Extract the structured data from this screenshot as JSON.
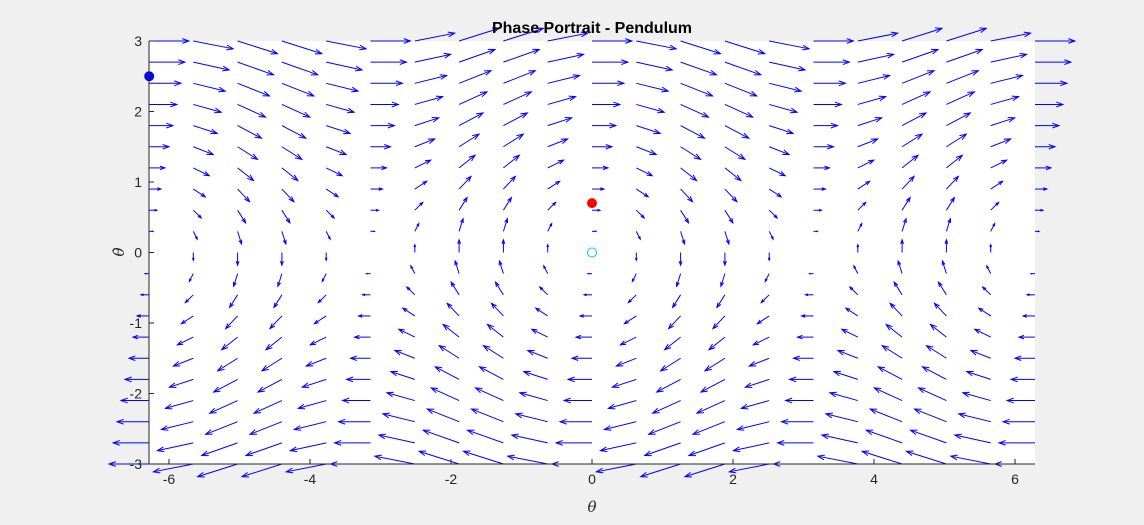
{
  "chart_data": {
    "type": "quiver",
    "title": "Phase Portrait - Pendulum",
    "xlabel": "θ",
    "ylabel": "θ̇",
    "xlim": [
      -6.283,
      6.283
    ],
    "ylim": [
      -3,
      3
    ],
    "xticks": [
      -6,
      -4,
      -2,
      0,
      2,
      4,
      6
    ],
    "xtick_labels": [
      "-6",
      "-4",
      "-2",
      "0",
      "2",
      "4",
      "6"
    ],
    "yticks": [
      -3,
      -2,
      -1,
      0,
      1,
      2,
      3
    ],
    "ytick_labels": [
      "-3",
      "-2",
      "-1",
      "0",
      "1",
      "2",
      "3"
    ],
    "grid": false,
    "vector_field": {
      "equation": "dθ/dt = θ̇, dθ̇/dt = -sin(θ)",
      "x_range": [
        -6.283,
        6.283
      ],
      "x_count": 21,
      "y_range": [
        -3,
        3
      ],
      "y_count": 21,
      "color": "#0000ff"
    },
    "markers": [
      {
        "name": "blue-filled-point",
        "x": -6.28,
        "y": 2.5,
        "color": "#0000ff",
        "filled": true
      },
      {
        "name": "red-filled-point",
        "x": 0,
        "y": 0.7,
        "color": "#ff0000",
        "filled": true
      },
      {
        "name": "cyan-open-point",
        "x": 0,
        "y": 0,
        "color": "#00bfff",
        "filled": false
      }
    ]
  },
  "colors": {
    "background": "#f0f0f0",
    "axes_background": "#ffffff",
    "axis": "#262626",
    "arrows": "#0000ff"
  }
}
